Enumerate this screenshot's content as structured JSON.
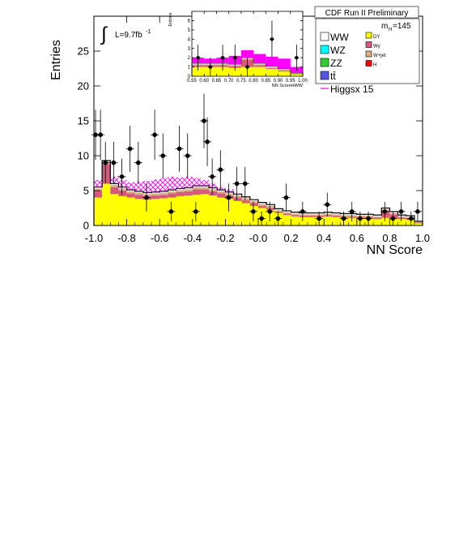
{
  "header": {
    "title": "CDF Run II Preliminary",
    "luminosity": "L=9.7fb",
    "luminosity_exp": "-1",
    "mass_label": "m",
    "mass_sub": "H",
    "mass_value": "=145"
  },
  "legend": {
    "placement": "top-right",
    "entries": [
      {
        "label": "WW",
        "color": "#ffffff"
      },
      {
        "label": "DY",
        "color": "#ffff00"
      },
      {
        "label": "WZ",
        "color": "#00ffff"
      },
      {
        "label": "Wγ",
        "color": "#d65a7a"
      },
      {
        "label": "ZZ",
        "color": "#33cc33"
      },
      {
        "label": "W+jet",
        "color": "#d8b088"
      },
      {
        "label": "tt̄",
        "color": "#5555dd"
      },
      {
        "label": "H",
        "color": "#ff0000"
      },
      {
        "label": "Higgsx 15",
        "color": "#ff00ff"
      }
    ]
  },
  "chart_data": [
    {
      "type": "bar",
      "xlabel": "NN Score",
      "ylabel": "Entries",
      "xlim": [
        -1.0,
        1.0
      ],
      "ylim": [
        0,
        30
      ],
      "xticks": [
        "-1.0",
        "-0.8",
        "-0.6",
        "-0.4",
        "-0.2",
        "-0.0",
        "0.2",
        "0.4",
        "0.6",
        "0.8",
        "1.0"
      ],
      "yticks": [
        "0",
        "5",
        "10",
        "15",
        "20",
        "25"
      ],
      "bin_width": 0.05,
      "bin_edges_start": -1.0,
      "stack": {
        "DY": [
          4.0,
          6.0,
          4.5,
          4.2,
          4.0,
          3.8,
          3.7,
          3.8,
          3.9,
          4.0,
          4.2,
          4.3,
          4.4,
          4.5,
          4.3,
          4.0,
          3.8,
          3.5,
          3.2,
          2.8,
          2.5,
          2.2,
          1.8,
          1.5,
          1.3,
          1.2,
          1.2,
          1.2,
          1.3,
          1.2,
          1.1,
          1.1,
          1.0,
          1.0,
          0.9,
          1.1,
          1.0,
          0.9,
          0.8,
          0.3
        ],
        "Wgamma": [
          1.0,
          2.8,
          1.0,
          0.8,
          0.6,
          0.6,
          0.5,
          0.5,
          0.5,
          0.6,
          0.6,
          0.6,
          0.8,
          0.7,
          0.6,
          0.6,
          0.5,
          0.5,
          0.4,
          0.4,
          0.3,
          0.3,
          0.2,
          0.2,
          0.2,
          0.2,
          0.2,
          0.2,
          0.2,
          0.2,
          0.2,
          0.2,
          0.2,
          0.2,
          0.2,
          1.0,
          0.6,
          0.2,
          0.2,
          0.1
        ],
        "Wjet": [
          0.3,
          0.3,
          0.3,
          0.3,
          0.3,
          0.3,
          0.3,
          0.3,
          0.3,
          0.3,
          0.3,
          0.3,
          0.3,
          0.3,
          0.3,
          0.3,
          0.3,
          0.3,
          0.3,
          0.3,
          0.3,
          0.3,
          0.2,
          0.2,
          0.2,
          0.2,
          0.2,
          0.2,
          0.2,
          0.2,
          0.2,
          0.2,
          0.2,
          0.2,
          0.2,
          0.2,
          0.2,
          0.2,
          0.2,
          0.1
        ],
        "WW": [
          0.2,
          0.2,
          0.2,
          0.2,
          0.2,
          0.2,
          0.2,
          0.2,
          0.2,
          0.2,
          0.2,
          0.2,
          0.2,
          0.2,
          0.2,
          0.2,
          0.2,
          0.2,
          0.2,
          0.2,
          0.2,
          0.2,
          0.2,
          0.2,
          0.2,
          0.2,
          0.2,
          0.2,
          0.2,
          0.2,
          0.2,
          0.2,
          0.2,
          0.2,
          0.2,
          0.2,
          0.2,
          0.2,
          0.2,
          0.1
        ]
      },
      "higgs_x15": [
        6.5,
        8.5,
        7.0,
        6.5,
        6.2,
        6.3,
        6.4,
        6.6,
        6.8,
        7.0,
        6.9,
        7.0,
        6.8,
        6.5,
        6.0,
        5.5,
        5.2,
        4.6,
        3.8,
        3.0,
        2.3,
        1.8,
        1.5,
        1.5,
        1.5,
        1.5,
        1.5,
        1.5,
        1.6,
        1.5,
        1.5,
        1.5,
        1.4,
        1.5,
        1.3,
        2.3,
        1.8,
        1.2,
        1.2,
        0.6
      ],
      "data": {
        "x": [
          -0.99,
          -0.96,
          -0.93,
          -0.88,
          -0.83,
          -0.78,
          -0.73,
          -0.68,
          -0.63,
          -0.58,
          -0.53,
          -0.48,
          -0.43,
          -0.38,
          -0.33,
          -0.31,
          -0.28,
          -0.23,
          -0.18,
          -0.13,
          -0.08,
          -0.03,
          0.02,
          0.07,
          0.12,
          0.17,
          0.27,
          0.37,
          0.42,
          0.52,
          0.57,
          0.62,
          0.67,
          0.77,
          0.82,
          0.87,
          0.93,
          0.97
        ],
        "y": [
          13,
          13,
          9,
          9,
          7,
          11,
          9,
          4,
          13,
          10,
          2,
          11,
          10,
          2,
          15,
          12,
          7,
          8,
          4,
          6,
          6,
          2,
          1,
          2,
          1,
          4,
          2,
          1,
          3,
          1,
          2,
          1,
          1,
          2,
          1,
          2,
          1,
          2
        ],
        "err": [
          3.6,
          3.6,
          3.0,
          3.0,
          2.6,
          3.3,
          3.0,
          2.0,
          3.6,
          3.2,
          1.4,
          3.3,
          3.2,
          1.4,
          3.9,
          3.5,
          2.6,
          2.8,
          2.0,
          2.4,
          2.4,
          1.4,
          1.0,
          1.4,
          1.0,
          2.0,
          1.4,
          1.0,
          1.7,
          1.0,
          1.4,
          1.0,
          1.0,
          1.4,
          1.0,
          1.4,
          1.0,
          1.4
        ]
      }
    },
    {
      "type": "bar",
      "xlabel": "NN ScoreHWW",
      "ylabel": "Entries",
      "xlim": [
        0.55,
        1.0
      ],
      "ylim": [
        0,
        7
      ],
      "xticks": [
        "0.55",
        "0.60",
        "0.65",
        "0.70",
        "0.75",
        "0.80",
        "0.85",
        "0.90",
        "0.95",
        "1.00"
      ],
      "yticks": [
        "0",
        "1",
        "2",
        "3",
        "4",
        "5",
        "6"
      ],
      "bin_width": 0.05,
      "bin_edges_start": 0.55,
      "stack": {
        "DY": [
          1.0,
          1.0,
          1.0,
          0.9,
          1.0,
          1.0,
          0.8,
          0.5,
          0.2
        ],
        "Wgamma": [
          0.2,
          0.2,
          0.2,
          0.2,
          0.8,
          0.2,
          0.1,
          0.1,
          0.05
        ],
        "Wjet": [
          0.1,
          0.1,
          0.1,
          0.1,
          0.1,
          0.1,
          0.1,
          0.1,
          0.05
        ],
        "WW": [
          0.1,
          0.1,
          0.1,
          0.1,
          0.1,
          0.1,
          0.1,
          0.1,
          0.05
        ]
      },
      "higgs_x15": [
        2.0,
        1.9,
        2.0,
        2.2,
        2.8,
        2.4,
        2.1,
        1.9,
        1.0
      ],
      "data": {
        "x": [
          0.575,
          0.625,
          0.675,
          0.725,
          0.775,
          0.875,
          0.975
        ],
        "y": [
          2,
          1,
          2,
          2,
          1,
          4,
          2
        ],
        "err": [
          1.4,
          1.0,
          1.4,
          1.4,
          1.0,
          2.0,
          1.4
        ]
      }
    }
  ]
}
